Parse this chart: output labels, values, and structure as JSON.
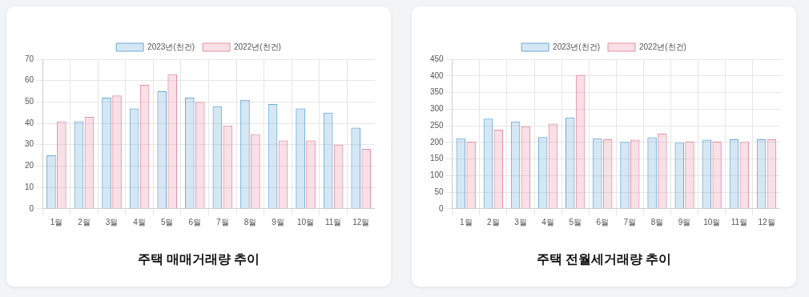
{
  "chart_data": [
    {
      "type": "bar",
      "title": "주택 매매거래량 추이",
      "categories": [
        "1월",
        "2월",
        "3월",
        "4월",
        "5월",
        "6월",
        "7월",
        "8월",
        "9월",
        "10월",
        "11월",
        "12월"
      ],
      "series": [
        {
          "name": "2023년(천건)",
          "color": "#6aaad6",
          "values": [
            25,
            41,
            52,
            47,
            55,
            52,
            48,
            51,
            49,
            47,
            45,
            38
          ]
        },
        {
          "name": "2022년(천건)",
          "color": "#e68fa4",
          "values": [
            41,
            43,
            53,
            58,
            63,
            50,
            39,
            35,
            32,
            32,
            30,
            28
          ]
        }
      ],
      "ylim": [
        0,
        70
      ],
      "yticks": [
        0,
        10,
        20,
        30,
        40,
        50,
        60,
        70
      ],
      "grid": true,
      "legend": "top"
    },
    {
      "type": "bar",
      "title": "주택 전월세거래량 추이",
      "categories": [
        "1월",
        "2월",
        "3월",
        "4월",
        "5월",
        "6월",
        "7월",
        "8월",
        "9월",
        "10월",
        "11월",
        "12월"
      ],
      "series": [
        {
          "name": "2023년(천건)",
          "color": "#6aaad6",
          "values": [
            212,
            271,
            263,
            216,
            275,
            212,
            201,
            215,
            199,
            208,
            209,
            209
          ]
        },
        {
          "name": "2022년(천건)",
          "color": "#e68fa4",
          "values": [
            202,
            238,
            248,
            256,
            403,
            209,
            208,
            226,
            202,
            202,
            201,
            209
          ]
        }
      ],
      "ylim": [
        0,
        450
      ],
      "yticks": [
        0,
        50,
        100,
        150,
        200,
        250,
        300,
        350,
        400,
        450
      ],
      "grid": true,
      "legend": "top"
    }
  ]
}
